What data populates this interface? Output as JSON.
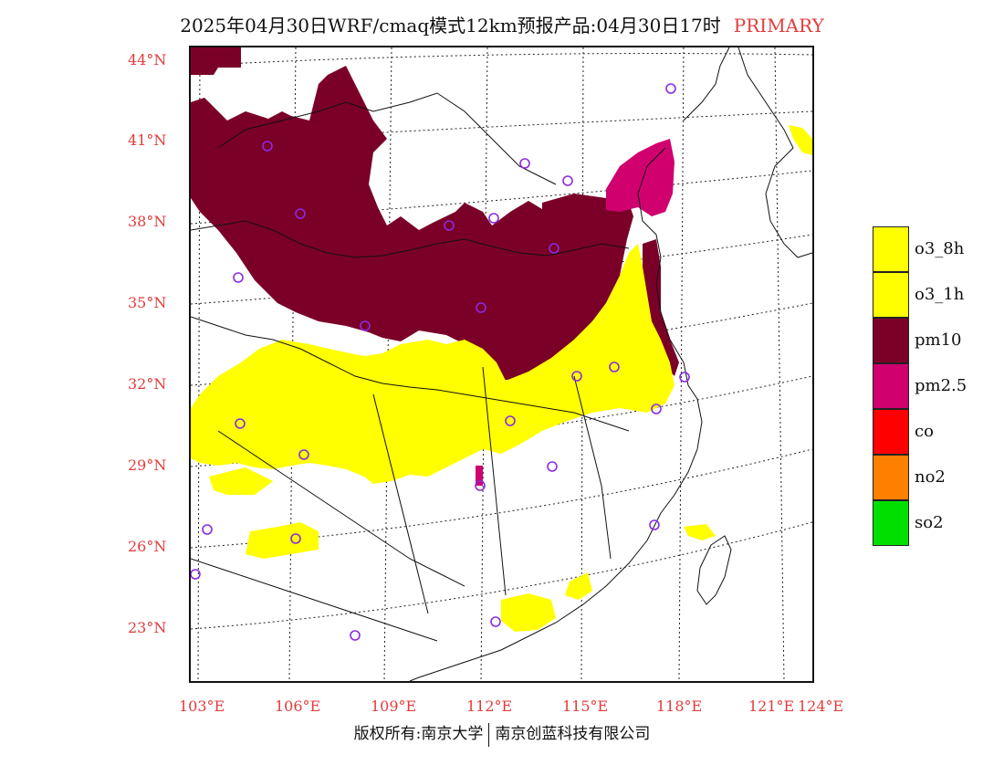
{
  "header": {
    "title": "2025年04月30日WRF/cmaq模式12km预报产品:04月30日17时",
    "tag": "PRIMARY",
    "tag_color": "#e33b3b"
  },
  "map": {
    "lat_labels": [
      "44°N",
      "41°N",
      "38°N",
      "35°N",
      "32°N",
      "29°N",
      "26°N",
      "23°N"
    ],
    "lon_labels": [
      "103°E",
      "106°E",
      "109°E",
      "112°E",
      "115°E",
      "118°E",
      "121°E",
      "124°E"
    ]
  },
  "legend": {
    "items": [
      {
        "label": "o3_8h",
        "color": "#ffff00"
      },
      {
        "label": "o3_1h",
        "color": "#ffff00"
      },
      {
        "label": "pm10",
        "color": "#7b0028"
      },
      {
        "label": "pm2.5",
        "color": "#d0006f"
      },
      {
        "label": "co",
        "color": "#ff0000"
      },
      {
        "label": "no2",
        "color": "#ff7f00"
      },
      {
        "label": "so2",
        "color": "#00e000"
      }
    ]
  },
  "footer": {
    "left": "版权所有:南京大学",
    "right": "南京创蓝科技有限公司"
  }
}
